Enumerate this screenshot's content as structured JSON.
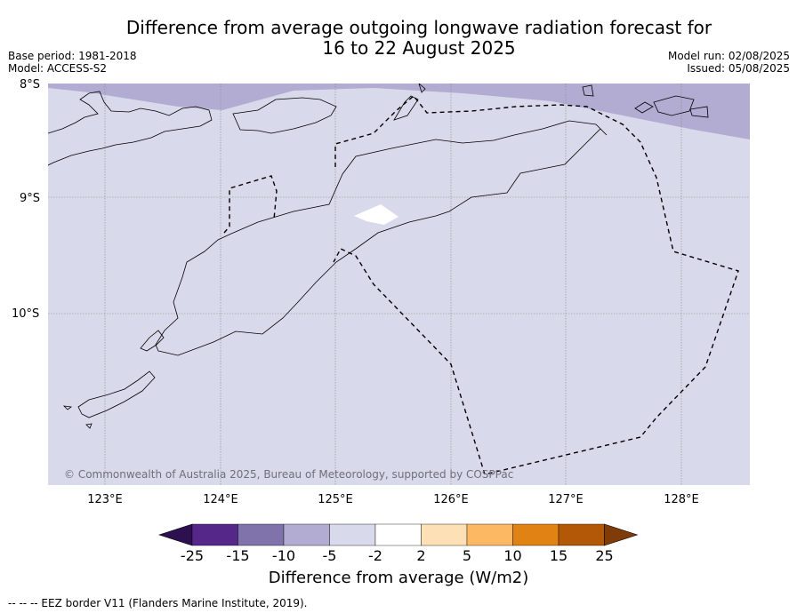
{
  "title_line1": "Difference from average outgoing longwave radiation forecast for",
  "title_line2": "16 to 22 August 2025",
  "base_period": "Base period: 1981-2018",
  "model": "Model: ACCESS-S2",
  "model_run": "Model run: 02/08/2025",
  "issued": "Issued: 05/08/2025",
  "copyright": "© Commonwealth of Australia 2025, Bureau of Meteorology, supported by COSPPac",
  "lat_labels": [
    "8°S",
    "9°S",
    "10°S"
  ],
  "lon_labels": [
    "123°E",
    "124°E",
    "125°E",
    "126°E",
    "127°E",
    "128°E"
  ],
  "colorbar": {
    "ticks": [
      "-25",
      "-15",
      "-10",
      "-5",
      "-2",
      "2",
      "5",
      "10",
      "15",
      "25"
    ],
    "colors": [
      "#2d1050",
      "#542788",
      "#8073ac",
      "#b2abd2",
      "#d8daeb",
      "#ffffff",
      "#fee0b6",
      "#fdb863",
      "#e08214",
      "#b35806",
      "#7f3b08"
    ],
    "title": "Difference from average (W/m2)"
  },
  "footer": "--  --  -- EEZ border V11 (Flanders Marine Institute, 2019).",
  "colors": {
    "background_field": "#d8daeb",
    "anomaly_field": "#b2abd2"
  }
}
